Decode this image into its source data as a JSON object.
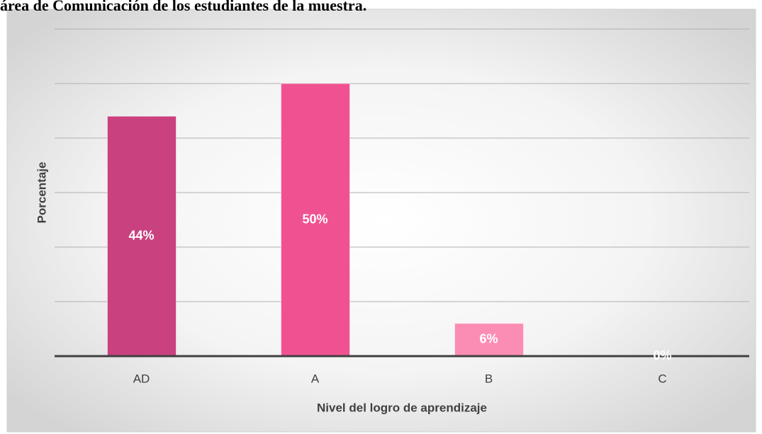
{
  "chart_data": {
    "type": "bar",
    "title": "área de Comunicación de los estudiantes de la muestra.",
    "categories": [
      "AD",
      "A",
      "B",
      "C"
    ],
    "values": [
      44,
      50,
      6,
      0
    ],
    "value_labels": [
      "44%",
      "50%",
      "6%",
      "0%"
    ],
    "colors": [
      "#c9417f",
      "#f05291",
      "#fb8db5",
      "#fbb3cc"
    ],
    "x_label": "Nivel del logro de aprendizaje",
    "y_label": "Porcentaje",
    "ylim": [
      0,
      60
    ],
    "yticks": [
      0,
      10,
      20,
      30,
      40,
      50,
      60
    ],
    "grid": true
  }
}
